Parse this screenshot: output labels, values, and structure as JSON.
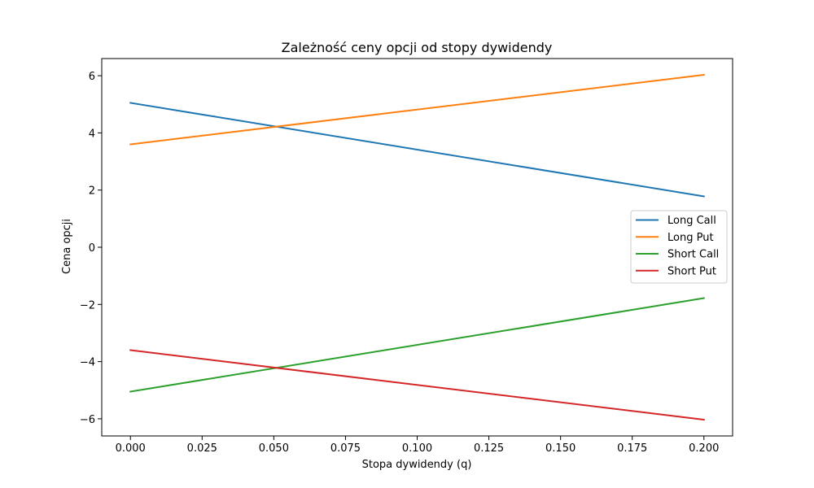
{
  "chart_data": {
    "type": "line",
    "title": "Zależność ceny opcji od stopy dywidendy",
    "xlabel": "Stopa dywidendy (q)",
    "ylabel": "Cena opcji",
    "xlim": [
      -0.01,
      0.21
    ],
    "ylim": [
      -6.6,
      6.6
    ],
    "xticks": [
      0.0,
      0.025,
      0.05,
      0.075,
      0.1,
      0.125,
      0.15,
      0.175,
      0.2
    ],
    "xtick_labels": [
      "0.000",
      "0.025",
      "0.050",
      "0.075",
      "0.100",
      "0.125",
      "0.150",
      "0.175",
      "0.200"
    ],
    "yticks": [
      -6,
      -4,
      -2,
      0,
      2,
      4,
      6
    ],
    "ytick_labels": [
      "−6",
      "−4",
      "−2",
      "0",
      "2",
      "4",
      "6"
    ],
    "x": [
      0.0,
      0.2
    ],
    "series": [
      {
        "name": "Long Call",
        "color": "#1f77b4",
        "values": [
          5.05,
          1.78
        ]
      },
      {
        "name": "Long Put",
        "color": "#ff7f0e",
        "values": [
          3.6,
          6.03
        ]
      },
      {
        "name": "Short Call",
        "color": "#2ca02c",
        "values": [
          -5.05,
          -1.78
        ]
      },
      {
        "name": "Short Put",
        "color": "#d62728",
        "values": [
          -3.6,
          -6.03
        ]
      }
    ],
    "grid": false,
    "legend_position": "center-right"
  }
}
